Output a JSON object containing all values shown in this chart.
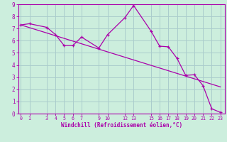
{
  "xlabel": "Windchill (Refroidissement éolien,°C)",
  "background_color": "#cceedd",
  "grid_color": "#aacccc",
  "line_color": "#aa00aa",
  "x_tick_positions": [
    0,
    1,
    3,
    4,
    5,
    6,
    7,
    9,
    10,
    12,
    13,
    15,
    16,
    17,
    18,
    19,
    20,
    21,
    22,
    23
  ],
  "x_tick_labels": [
    "0",
    "1",
    "3",
    "4",
    "5",
    "6",
    "7",
    "9",
    "10",
    "12",
    "13",
    "15",
    "16",
    "17",
    "18",
    "19",
    "20",
    "21",
    "22",
    "23"
  ],
  "curve_x": [
    0,
    1,
    3,
    4,
    5,
    6,
    7,
    9,
    10,
    12,
    13,
    15,
    16,
    17,
    18,
    19,
    20,
    21,
    22,
    23
  ],
  "curve_y": [
    7.3,
    7.4,
    7.1,
    6.5,
    5.6,
    5.6,
    6.3,
    5.4,
    6.5,
    7.9,
    8.9,
    6.8,
    5.55,
    5.5,
    4.55,
    3.15,
    3.2,
    2.3,
    0.4,
    0.1
  ],
  "line_x": [
    0,
    23
  ],
  "line_y": [
    7.3,
    2.2
  ],
  "ylim": [
    0,
    9
  ],
  "xlim": [
    -0.3,
    23.5
  ],
  "yticks": [
    0,
    1,
    2,
    3,
    4,
    5,
    6,
    7,
    8,
    9
  ]
}
